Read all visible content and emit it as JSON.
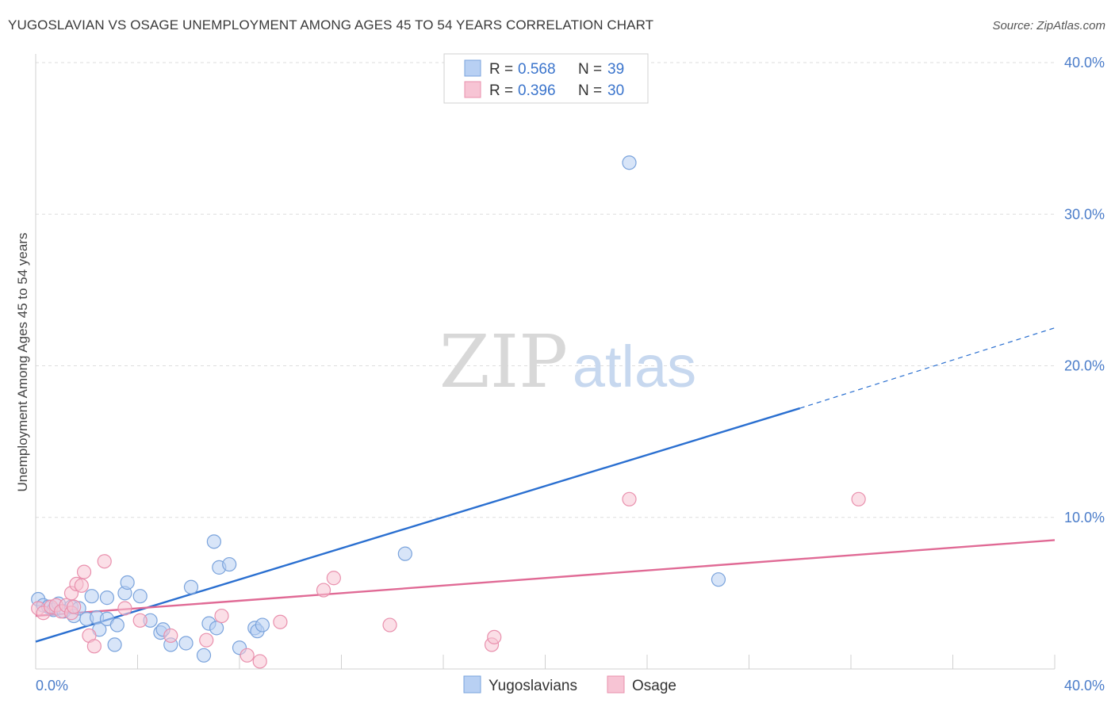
{
  "header": {
    "title": "YUGOSLAVIAN VS OSAGE UNEMPLOYMENT AMONG AGES 45 TO 54 YEARS CORRELATION CHART",
    "source": "Source: ZipAtlas.com"
  },
  "watermark": {
    "zip": "ZIP",
    "atlas": "atlas"
  },
  "legend": {
    "rows": [
      {
        "r_label": "R =",
        "r_value": "0.568",
        "n_label": "N =",
        "n_value": "39"
      },
      {
        "r_label": "R =",
        "r_value": "0.396",
        "n_label": "N =",
        "n_value": "30"
      }
    ]
  },
  "colors": {
    "yugoslavians_fill": "#b8d0f3",
    "yugoslavians_stroke": "#7aa3dc",
    "yugoslavians_line": "#2a6fd0",
    "osage_fill": "#f7c4d4",
    "osage_stroke": "#e990ad",
    "osage_line": "#e06a95",
    "tick_text": "#4a7cc9",
    "grid": "#dedede"
  },
  "chart_data": {
    "type": "scatter",
    "title": "YUGOSLAVIAN VS OSAGE UNEMPLOYMENT AMONG AGES 45 TO 54 YEARS CORRELATION CHART",
    "xlabel": "",
    "ylabel": "Unemployment Among Ages 45 to 54 years",
    "xlim": [
      0,
      40
    ],
    "ylim": [
      0,
      40
    ],
    "x_tick_labels": [
      {
        "value": 0,
        "label": "0.0%"
      },
      {
        "value": 40,
        "label": "40.0%"
      }
    ],
    "y_tick_labels": [
      {
        "value": 10,
        "label": "10.0%"
      },
      {
        "value": 20,
        "label": "20.0%"
      },
      {
        "value": 30,
        "label": "30.0%"
      },
      {
        "value": 40,
        "label": "40.0%"
      }
    ],
    "series": [
      {
        "name": "Yugoslavians",
        "r": 0.568,
        "n": 39,
        "points": [
          [
            0.1,
            4.6
          ],
          [
            0.3,
            4.2
          ],
          [
            0.5,
            4.1
          ],
          [
            0.7,
            3.9
          ],
          [
            0.9,
            4.3
          ],
          [
            1.1,
            3.8
          ],
          [
            1.4,
            4.1
          ],
          [
            1.5,
            3.5
          ],
          [
            1.7,
            4.0
          ],
          [
            2.0,
            3.3
          ],
          [
            2.2,
            4.8
          ],
          [
            2.4,
            3.4
          ],
          [
            2.5,
            2.6
          ],
          [
            2.8,
            3.3
          ],
          [
            2.8,
            4.7
          ],
          [
            3.1,
            1.6
          ],
          [
            3.2,
            2.9
          ],
          [
            3.5,
            5.0
          ],
          [
            3.6,
            5.7
          ],
          [
            4.1,
            4.8
          ],
          [
            4.5,
            3.2
          ],
          [
            4.9,
            2.4
          ],
          [
            5.0,
            2.6
          ],
          [
            5.3,
            1.6
          ],
          [
            5.9,
            1.7
          ],
          [
            6.1,
            5.4
          ],
          [
            6.6,
            0.9
          ],
          [
            6.8,
            3.0
          ],
          [
            7.0,
            8.4
          ],
          [
            7.1,
            2.7
          ],
          [
            7.2,
            6.7
          ],
          [
            7.6,
            6.9
          ],
          [
            8.0,
            1.4
          ],
          [
            8.6,
            2.7
          ],
          [
            8.7,
            2.5
          ],
          [
            8.9,
            2.9
          ],
          [
            14.5,
            7.6
          ],
          [
            23.3,
            33.4
          ],
          [
            26.8,
            5.9
          ]
        ],
        "trend": {
          "x_start": 0,
          "y_start": 1.8,
          "x_solid_end": 30,
          "y_solid_end": 17.2,
          "x_end": 40,
          "y_end": 22.5
        }
      },
      {
        "name": "Osage",
        "r": 0.396,
        "n": 30,
        "points": [
          [
            0.1,
            4.0
          ],
          [
            0.3,
            3.7
          ],
          [
            0.6,
            4.1
          ],
          [
            0.8,
            4.2
          ],
          [
            1.0,
            3.8
          ],
          [
            1.2,
            4.2
          ],
          [
            1.4,
            3.7
          ],
          [
            1.4,
            5.0
          ],
          [
            1.5,
            4.1
          ],
          [
            1.6,
            5.6
          ],
          [
            1.8,
            5.5
          ],
          [
            1.9,
            6.4
          ],
          [
            2.1,
            2.2
          ],
          [
            2.3,
            1.5
          ],
          [
            2.7,
            7.1
          ],
          [
            3.5,
            4.0
          ],
          [
            4.1,
            3.2
          ],
          [
            5.3,
            2.2
          ],
          [
            6.7,
            1.9
          ],
          [
            7.3,
            3.5
          ],
          [
            8.3,
            0.9
          ],
          [
            8.8,
            0.5
          ],
          [
            9.6,
            3.1
          ],
          [
            11.3,
            5.2
          ],
          [
            11.7,
            6.0
          ],
          [
            13.9,
            2.9
          ],
          [
            17.9,
            1.6
          ],
          [
            18.0,
            2.1
          ],
          [
            23.3,
            11.2
          ],
          [
            32.3,
            11.2
          ]
        ],
        "trend": {
          "x_start": 0,
          "y_start": 3.5,
          "x_end": 40,
          "y_end": 8.5
        }
      }
    ],
    "grid": true,
    "legend_position": "top-center",
    "bottom_legend": [
      "Yugoslavians",
      "Osage"
    ]
  }
}
